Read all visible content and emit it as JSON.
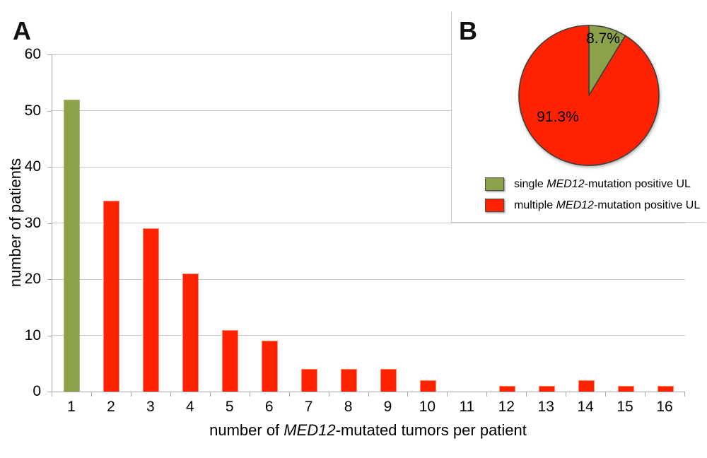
{
  "panel_a": {
    "label": "A",
    "chart_data": {
      "type": "bar",
      "title": "",
      "categories": [
        "1",
        "2",
        "3",
        "4",
        "5",
        "6",
        "7",
        "8",
        "9",
        "10",
        "11",
        "12",
        "13",
        "14",
        "15",
        "16"
      ],
      "values": [
        52,
        34,
        29,
        21,
        11,
        9,
        4,
        4,
        4,
        2,
        0,
        1,
        1,
        2,
        1,
        1
      ],
      "bar_colors": [
        "#8BA14A",
        "#FF2200",
        "#FF2200",
        "#FF2200",
        "#FF2200",
        "#FF2200",
        "#FF2200",
        "#FF2200",
        "#FF2200",
        "#FF2200",
        "#FF2200",
        "#FF2200",
        "#FF2200",
        "#FF2200",
        "#FF2200",
        "#FF2200"
      ],
      "ylabel": "number of patients",
      "xlabel": "number of MED12-mutated tumors per patient",
      "xlabel_rich": [
        {
          "t": "number of ",
          "i": false
        },
        {
          "t": "MED12",
          "i": true
        },
        {
          "t": "-mutated tumors per patient",
          "i": false
        }
      ],
      "ylim": [
        0,
        60
      ],
      "ytick_labels": [
        "0",
        "10",
        "20",
        "30",
        "40",
        "50",
        "60"
      ],
      "grid": true,
      "legend_position": "none"
    }
  },
  "panel_b": {
    "label": "B",
    "chart_data": {
      "type": "pie",
      "start_angle": "12-oclock",
      "direction": "clockwise",
      "slices": [
        {
          "name": "single MED12-mutation positive UL",
          "value": 8.7,
          "label": "8.7%",
          "color": "#8BA14A",
          "legend_rich": [
            {
              "t": "single ",
              "i": false
            },
            {
              "t": "MED12",
              "i": true
            },
            {
              "t": "-mutation positive UL",
              "i": false
            }
          ]
        },
        {
          "name": "multiple MED12-mutation positive UL",
          "value": 91.3,
          "label": "91.3%",
          "color": "#FF2200",
          "legend_rich": [
            {
              "t": "multiple ",
              "i": false
            },
            {
              "t": "MED12",
              "i": true
            },
            {
              "t": "-mutation positive UL",
              "i": false
            }
          ]
        }
      ],
      "legend_position": "below"
    }
  },
  "style": {
    "background": "#ffffff",
    "gridline_color": "#c9c9c9",
    "axis_color": "#a6a6a6",
    "text_color": "#000000",
    "single_bar_border": "#bcb272",
    "multiple_bar_border": "#ff8a66",
    "pie_outline": "#3e3e3e"
  }
}
